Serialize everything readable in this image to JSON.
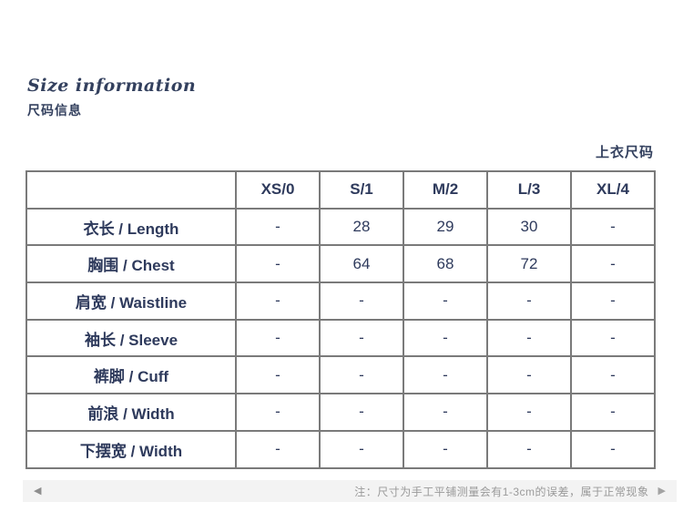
{
  "header": {
    "title_en": "Size information",
    "title_cn": "尺码信息",
    "table_caption": "上衣尺码"
  },
  "size_table": {
    "columns": [
      "",
      "XS/0",
      "S/1",
      "M/2",
      "L/3",
      "XL/4"
    ],
    "rows": [
      {
        "label": "衣长 / Length",
        "values": [
          "-",
          "28",
          "29",
          "30",
          "-"
        ]
      },
      {
        "label": "胸围 / Chest",
        "values": [
          "-",
          "64",
          "68",
          "72",
          "-"
        ]
      },
      {
        "label": "肩宽 / Waistline",
        "values": [
          "-",
          "-",
          "-",
          "-",
          "-"
        ]
      },
      {
        "label": "袖长 / Sleeve",
        "values": [
          "-",
          "-",
          "-",
          "-",
          "-"
        ]
      },
      {
        "label": "裤脚 / Cuff",
        "values": [
          "-",
          "-",
          "-",
          "-",
          "-"
        ]
      },
      {
        "label": "前浪 / Width",
        "values": [
          "-",
          "-",
          "-",
          "-",
          "-"
        ]
      },
      {
        "label": "下摆宽 / Width",
        "values": [
          "-",
          "-",
          "-",
          "-",
          "-"
        ]
      }
    ]
  },
  "footer": {
    "prev_arrow": "◀",
    "next_arrow": "▶",
    "note": "注：尺寸为手工平铺测量会有1-3cm的误差，属于正常现象"
  },
  "colors": {
    "text_navy": "#2e3a5c",
    "title_navy": "#33405e",
    "table_border_gray": "#7a7a7a",
    "note_gray": "#9a9a9a",
    "footer_bg": "#f3f3f3"
  }
}
